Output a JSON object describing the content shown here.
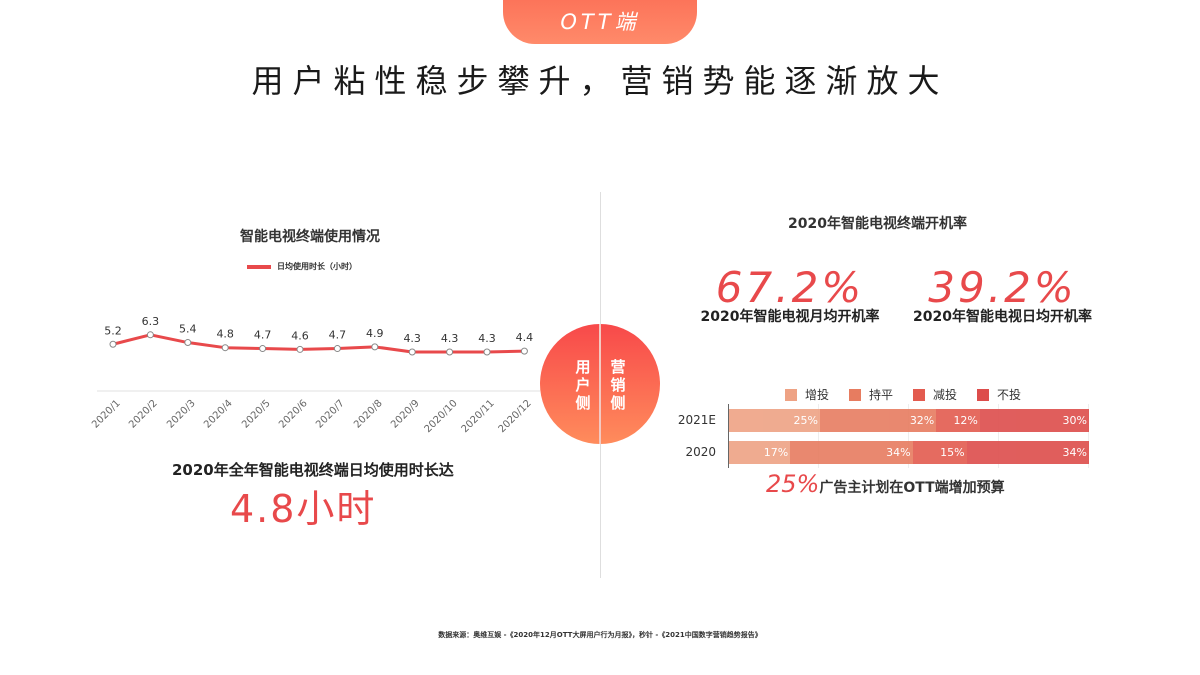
{
  "header": {
    "tab_label": "OTT端",
    "title": "用户粘性稳步攀升，营销势能逐渐放大"
  },
  "center": {
    "left_label": "用户侧",
    "right_label": "营销侧"
  },
  "left_panel": {
    "summary_text": "2020年全年智能电视终端日均使用时长达",
    "summary_value": "4.8小时"
  },
  "right_panel": {
    "title": "2020年智能电视终端开机率",
    "stats": [
      {
        "value": "67.2%",
        "label": "2020年智能电视月均开机率"
      },
      {
        "value": "39.2%",
        "label": "2020年智能电视日均开机率"
      }
    ],
    "note_pct": "25%",
    "note_text": "广告主计划在OTT端增加预算"
  },
  "colors": {
    "accent": "#e8494b",
    "increase": "#eea284",
    "flat": "#e77c60",
    "decrease": "#e35b4f",
    "none": "#dd4d4b"
  },
  "footer": {
    "source": "数据来源：奥维互娱 -《2020年12月OTT大屏用户行为月报》，秒针 -《2021中国数字营销趋势报告》"
  },
  "chart_data": [
    {
      "type": "line",
      "title": "智能电视终端使用情况",
      "legend": [
        "日均使用时长（小时）"
      ],
      "categories": [
        "2020/1",
        "2020/2",
        "2020/3",
        "2020/4",
        "2020/5",
        "2020/6",
        "2020/7",
        "2020/8",
        "2020/9",
        "2020/10",
        "2020/11",
        "2020/12"
      ],
      "series": [
        {
          "name": "日均使用时长（小时）",
          "values": [
            5.2,
            6.3,
            5.4,
            4.8,
            4.7,
            4.6,
            4.7,
            4.9,
            4.3,
            4.3,
            4.3,
            4.4
          ]
        }
      ],
      "xlabel": "",
      "ylabel": "",
      "grid": false
    },
    {
      "type": "bar",
      "orientation": "horizontal-stacked",
      "title": "",
      "legend": [
        "增投",
        "持平",
        "减投",
        "不投"
      ],
      "categories": [
        "2021E",
        "2020"
      ],
      "series": [
        {
          "name": "增投",
          "values": [
            25,
            17
          ]
        },
        {
          "name": "持平",
          "values": [
            32,
            34
          ]
        },
        {
          "name": "减投",
          "values": [
            12,
            15
          ]
        },
        {
          "name": "不投",
          "values": [
            30,
            34
          ]
        }
      ],
      "unit": "%"
    }
  ]
}
